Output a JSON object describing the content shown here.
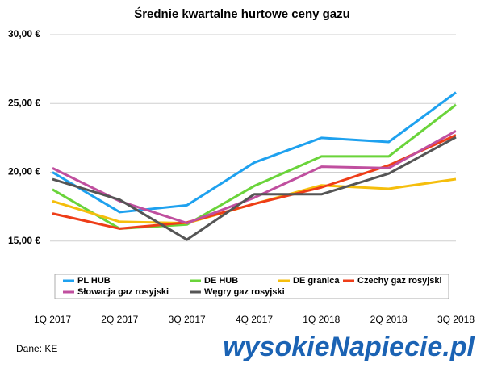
{
  "chart_data": {
    "type": "line",
    "title": "Średnie kwartalne hurtowe ceny gazu",
    "categories": [
      "1Q 2017",
      "2Q 2017",
      "3Q 2017",
      "4Q 2017",
      "1Q 2018",
      "2Q 2018",
      "3Q 2018"
    ],
    "series": [
      {
        "name": "PL HUB",
        "color": "#1ea1ef",
        "values": [
          20.0,
          17.1,
          17.6,
          20.7,
          22.5,
          22.2,
          25.8
        ]
      },
      {
        "name": "DE HUB",
        "color": "#6ad43a",
        "values": [
          18.75,
          15.9,
          16.2,
          19.0,
          21.15,
          21.15,
          24.9
        ]
      },
      {
        "name": "DE granica",
        "color": "#f5be0c",
        "values": [
          17.9,
          16.4,
          16.3,
          17.7,
          19.05,
          18.8,
          19.5
        ]
      },
      {
        "name": "Czechy gaz rosyjski",
        "color": "#ee3d18",
        "values": [
          17.0,
          15.9,
          16.35,
          17.7,
          18.9,
          20.5,
          22.7
        ]
      },
      {
        "name": "Słowacja gaz rosyjski",
        "color": "#c04f9f",
        "values": [
          20.3,
          17.9,
          16.3,
          18.15,
          20.4,
          20.3,
          23.0
        ]
      },
      {
        "name": "Węgry gaz rosyjski",
        "color": "#555555",
        "values": [
          19.5,
          18.0,
          15.1,
          18.4,
          18.4,
          19.9,
          22.55
        ]
      }
    ],
    "ylim": [
      10,
      30
    ],
    "yticks": [
      {
        "value": 15,
        "label": "15,00 €"
      },
      {
        "value": 20,
        "label": "20,00 €"
      },
      {
        "value": 25,
        "label": "25,00 €"
      },
      {
        "value": 30,
        "label": "30,00 €"
      }
    ],
    "grid": true,
    "source": "Dane: KE",
    "logo": "wysokieNapiecie.pl"
  }
}
